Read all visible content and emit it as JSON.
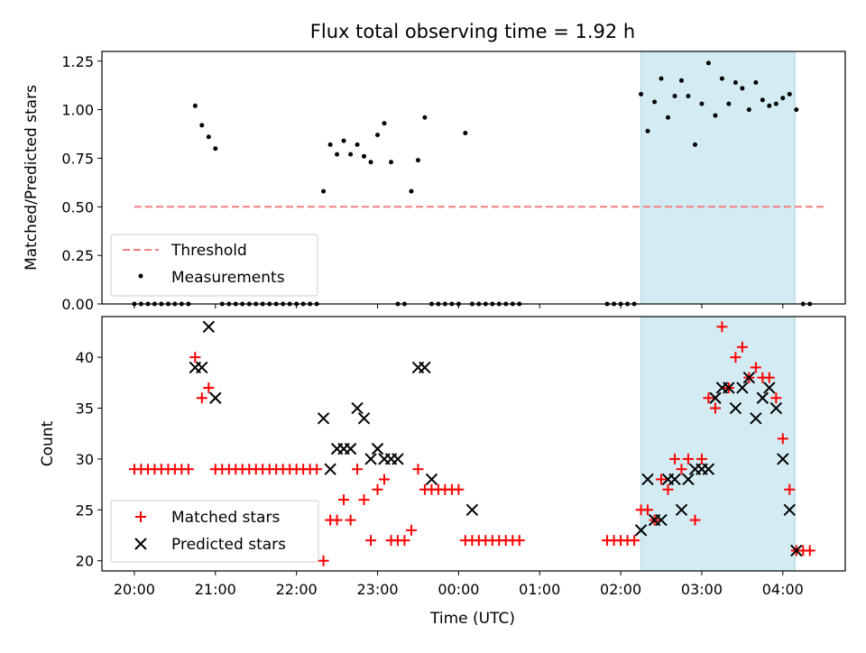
{
  "chart_data": [
    {
      "type": "scatter",
      "title": "Flux total observing time = 1.92 h",
      "ylabel": "Matched/Predicted stars",
      "xlabel": "",
      "xlim_hours": [
        19.6,
        28.77
      ],
      "ylim": [
        0,
        1.3
      ],
      "yticks": [
        0.0,
        0.25,
        0.5,
        0.75,
        1.0,
        1.25
      ],
      "ytick_labels": [
        "0.00",
        "0.25",
        "0.50",
        "0.75",
        "1.00",
        "1.25"
      ],
      "shaded_region_hours": [
        26.25,
        28.15
      ],
      "shade_color": "#d3ebf2",
      "threshold": {
        "name": "Threshold",
        "value": 0.5,
        "x_range_hours": [
          20.0,
          28.55
        ],
        "color": "#f08080"
      },
      "series": [
        {
          "name": "Measurements",
          "color": "#000000",
          "x": [
            20.0,
            20.083,
            20.167,
            20.25,
            20.333,
            20.417,
            20.5,
            20.583,
            20.667,
            20.75,
            20.833,
            20.917,
            21.0,
            21.083,
            21.167,
            21.25,
            21.333,
            21.417,
            21.5,
            21.583,
            21.667,
            21.75,
            21.833,
            21.917,
            22.0,
            22.083,
            22.167,
            22.25,
            22.333,
            22.417,
            22.5,
            22.583,
            22.667,
            22.75,
            22.833,
            22.917,
            23.0,
            23.083,
            23.167,
            23.25,
            23.333,
            23.417,
            23.5,
            23.583,
            23.667,
            23.75,
            23.833,
            23.917,
            24.0,
            24.083,
            24.167,
            24.25,
            24.333,
            24.417,
            24.5,
            24.583,
            24.667,
            24.75,
            25.833,
            25.917,
            26.0,
            26.083,
            26.167,
            26.25,
            26.333,
            26.417,
            26.5,
            26.583,
            26.667,
            26.75,
            26.833,
            26.917,
            27.0,
            27.083,
            27.167,
            27.25,
            27.333,
            27.417,
            27.5,
            27.583,
            27.667,
            27.75,
            27.833,
            27.917,
            28.0,
            28.083,
            28.167,
            28.25,
            28.333
          ],
          "y": [
            0,
            0,
            0,
            0,
            0,
            0,
            0,
            0,
            0,
            1.02,
            0.92,
            0.86,
            0.8,
            0,
            0,
            0,
            0,
            0,
            0,
            0,
            0,
            0,
            0,
            0,
            0,
            0,
            0,
            0,
            0.58,
            0.82,
            0.77,
            0.84,
            0.77,
            0.82,
            0.76,
            0.73,
            0.87,
            0.93,
            0.73,
            0,
            0,
            0.58,
            0.74,
            0.96,
            0,
            0,
            0,
            0,
            0,
            0.88,
            0,
            0,
            0,
            0,
            0,
            0,
            0,
            0,
            0,
            0,
            0,
            0,
            0,
            1.08,
            0.89,
            1.04,
            1.16,
            0.96,
            1.07,
            1.15,
            1.07,
            0.82,
            1.03,
            1.24,
            0.97,
            1.16,
            1.03,
            1.14,
            1.11,
            1.0,
            1.14,
            1.05,
            1.02,
            1.03,
            1.06,
            1.08,
            1.0,
            0,
            0
          ]
        }
      ],
      "legend": "lower-left"
    },
    {
      "type": "scatter",
      "title": "",
      "xlabel": "Time (UTC)",
      "ylabel": "Count",
      "xlim_hours": [
        19.6,
        28.77
      ],
      "ylim": [
        19,
        44
      ],
      "yticks": [
        20,
        25,
        30,
        35,
        40
      ],
      "ytick_labels": [
        "20",
        "25",
        "30",
        "35",
        "40"
      ],
      "xticks_hours": [
        20,
        21,
        22,
        23,
        24,
        25,
        26,
        27,
        28
      ],
      "xtick_labels": [
        "20:00",
        "21:00",
        "22:00",
        "23:00",
        "00:00",
        "01:00",
        "02:00",
        "03:00",
        "04:00"
      ],
      "shaded_region_hours": [
        26.25,
        28.15
      ],
      "series": [
        {
          "name": "Matched stars",
          "marker": "plus",
          "color": "#ff0000",
          "x": [
            20.0,
            20.083,
            20.167,
            20.25,
            20.333,
            20.417,
            20.5,
            20.583,
            20.667,
            20.75,
            20.833,
            20.917,
            21.0,
            21.083,
            21.167,
            21.25,
            21.333,
            21.417,
            21.5,
            21.583,
            21.667,
            21.75,
            21.833,
            21.917,
            22.0,
            22.083,
            22.167,
            22.25,
            22.333,
            22.417,
            22.5,
            22.583,
            22.667,
            22.75,
            22.833,
            22.917,
            23.0,
            23.083,
            23.167,
            23.25,
            23.333,
            23.417,
            23.5,
            23.583,
            23.667,
            23.75,
            23.833,
            23.917,
            24.0,
            24.083,
            24.167,
            24.25,
            24.333,
            24.417,
            24.5,
            24.583,
            24.667,
            24.75,
            25.833,
            25.917,
            26.0,
            26.083,
            26.167,
            26.25,
            26.333,
            26.417,
            26.5,
            26.583,
            26.667,
            26.75,
            26.833,
            26.917,
            27.0,
            27.083,
            27.167,
            27.25,
            27.333,
            27.417,
            27.5,
            27.583,
            27.667,
            27.75,
            27.833,
            27.917,
            28.0,
            28.083,
            28.167,
            28.25,
            28.333
          ],
          "y": [
            29,
            29,
            29,
            29,
            29,
            29,
            29,
            29,
            29,
            40,
            36,
            37,
            29,
            29,
            29,
            29,
            29,
            29,
            29,
            29,
            29,
            29,
            29,
            29,
            29,
            29,
            29,
            29,
            20,
            24,
            24,
            26,
            24,
            29,
            26,
            22,
            27,
            28,
            22,
            22,
            22,
            23,
            29,
            27,
            27,
            27,
            27,
            27,
            27,
            22,
            22,
            22,
            22,
            22,
            22,
            22,
            22,
            22,
            22,
            22,
            22,
            22,
            22,
            25,
            25,
            24,
            28,
            27,
            30,
            29,
            30,
            24,
            30,
            36,
            35,
            43,
            37,
            40,
            41,
            38,
            39,
            38,
            38,
            36,
            32,
            27,
            21,
            21,
            21
          ]
        },
        {
          "name": "Predicted stars",
          "marker": "x",
          "color": "#000000",
          "x": [
            20.75,
            20.833,
            20.917,
            21.0,
            22.333,
            22.417,
            22.5,
            22.583,
            22.667,
            22.75,
            22.833,
            22.917,
            23.0,
            23.083,
            23.167,
            23.25,
            23.5,
            23.583,
            23.667,
            24.167,
            26.25,
            26.333,
            26.417,
            26.5,
            26.583,
            26.667,
            26.75,
            26.833,
            26.917,
            27.0,
            27.083,
            27.167,
            27.25,
            27.333,
            27.417,
            27.5,
            27.583,
            27.667,
            27.75,
            27.833,
            27.917,
            28.0,
            28.083,
            28.167
          ],
          "y": [
            39,
            39,
            43,
            36,
            34,
            29,
            31,
            31,
            31,
            35,
            34,
            30,
            31,
            30,
            30,
            30,
            39,
            39,
            28,
            25,
            23,
            28,
            24,
            24,
            28,
            28,
            25,
            28,
            29,
            29,
            29,
            36,
            37,
            37,
            35,
            37,
            38,
            34,
            36,
            37,
            35,
            30,
            25,
            21
          ]
        }
      ],
      "legend": "lower-left"
    }
  ]
}
